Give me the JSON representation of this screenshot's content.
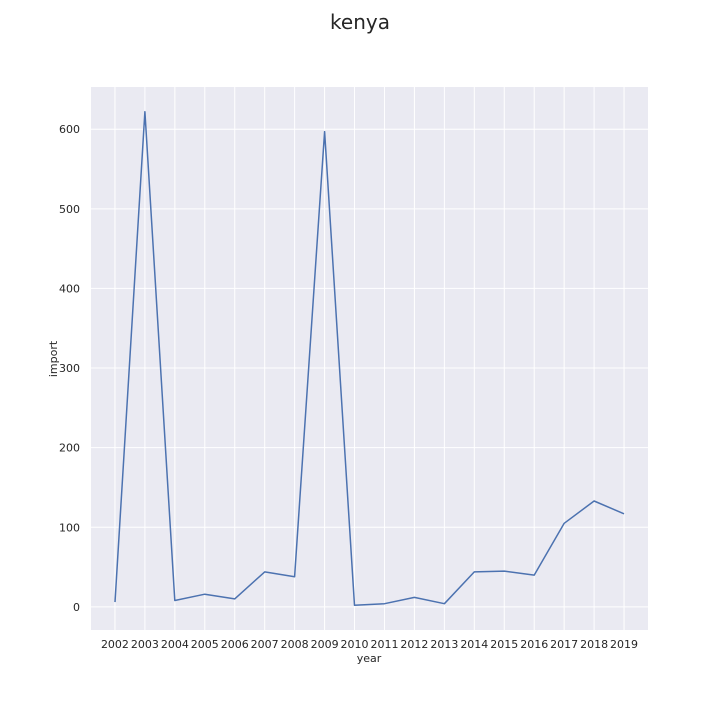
{
  "chart_data": {
    "type": "line",
    "title": "kenya",
    "xlabel": "year",
    "ylabel": "import",
    "x": [
      "2002",
      "2003",
      "2004",
      "2005",
      "2006",
      "2007",
      "2008",
      "2009",
      "2010",
      "2011",
      "2012",
      "2013",
      "2014",
      "2015",
      "2016",
      "2017",
      "2018",
      "2019"
    ],
    "series": [
      {
        "values": [
          6,
          622,
          8,
          16,
          10,
          44,
          38,
          597,
          2,
          4,
          12,
          4,
          44,
          45,
          40,
          105,
          133,
          117
        ]
      }
    ],
    "yticks": [
      0,
      100,
      200,
      300,
      400,
      500,
      600
    ],
    "ylim": [
      -29,
      653
    ],
    "grid": true,
    "legend": "none",
    "colors": {
      "line": "#4c72b0",
      "plot_bg": "#eaeaf2",
      "grid": "#ffffff"
    }
  }
}
